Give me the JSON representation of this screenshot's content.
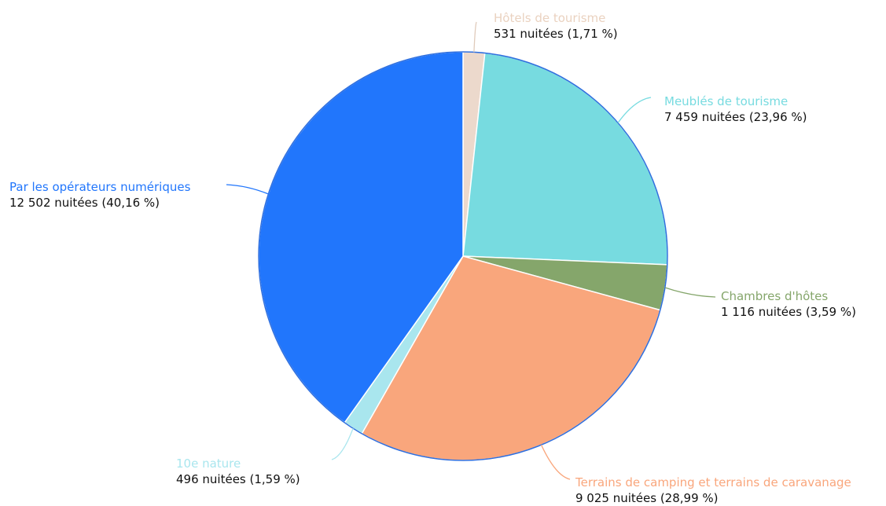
{
  "chart_data": {
    "type": "pie",
    "title": "",
    "slices": [
      {
        "name": "Hôtels de tourisme",
        "value": 531,
        "percent": 1.71,
        "color": "#ecd9cc",
        "value_label": "531 nuitées (1,71 %)"
      },
      {
        "name": "Meublés de tourisme",
        "value": 7459,
        "percent": 23.96,
        "color": "#77dbe0",
        "value_label": "7 459 nuitées (23,96 %)"
      },
      {
        "name": "Chambres d'hôtes",
        "value": 1116,
        "percent": 3.59,
        "color": "#85a66b",
        "value_label": "1 116 nuitées (3,59 %)"
      },
      {
        "name": "Terrains de camping et terrains de caravanage",
        "value": 9025,
        "percent": 28.99,
        "color": "#f9a67c",
        "value_label": "9 025 nuitées (28,99 %)"
      },
      {
        "name": "10e nature",
        "value": 496,
        "percent": 1.59,
        "color": "#a9e6ee",
        "value_label": "496 nuitées (1,59 %)"
      },
      {
        "name": "Par les opérateurs numériques",
        "value": 12502,
        "percent": 40.16,
        "color": "#2176fc",
        "value_label": "12 502 nuitées (40,16 %)"
      }
    ],
    "slice_border_color": "#2f6fde",
    "start": "top, clockwise"
  }
}
